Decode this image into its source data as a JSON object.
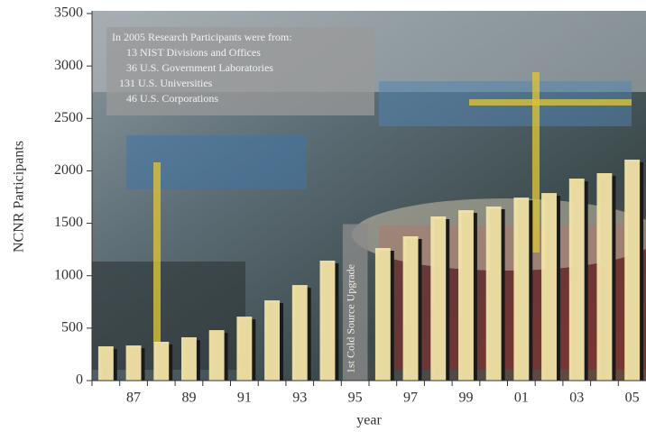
{
  "chart_data": {
    "type": "bar",
    "ylabel": "NCNR Participants",
    "xlabel": "year",
    "categories": [
      null,
      "87",
      null,
      "89",
      null,
      "91",
      null,
      "93",
      null,
      "95",
      null,
      "97",
      null,
      "99",
      null,
      "01",
      null,
      "03",
      null,
      "05"
    ],
    "values": [
      327,
      335,
      370,
      413,
      481,
      610,
      765,
      911,
      1144,
      null,
      1264,
      1376,
      1565,
      1625,
      1660,
      1745,
      1788,
      1926,
      1978,
      2107
    ],
    "color": "#f2e4a6",
    "ylim": [
      0,
      3500
    ],
    "yticks": [
      0,
      500,
      1000,
      1500,
      2000,
      2500,
      3000,
      3500
    ],
    "annotations": {
      "note": [
        "In 2005 Research Participants were from:",
        "13 NIST Divisions and Offices",
        "36 U.S. Government Laboratories",
        "131 U.S. Universities",
        "46 U.S. Corporations"
      ],
      "marker": "1st Cold Source Upgrade"
    }
  }
}
